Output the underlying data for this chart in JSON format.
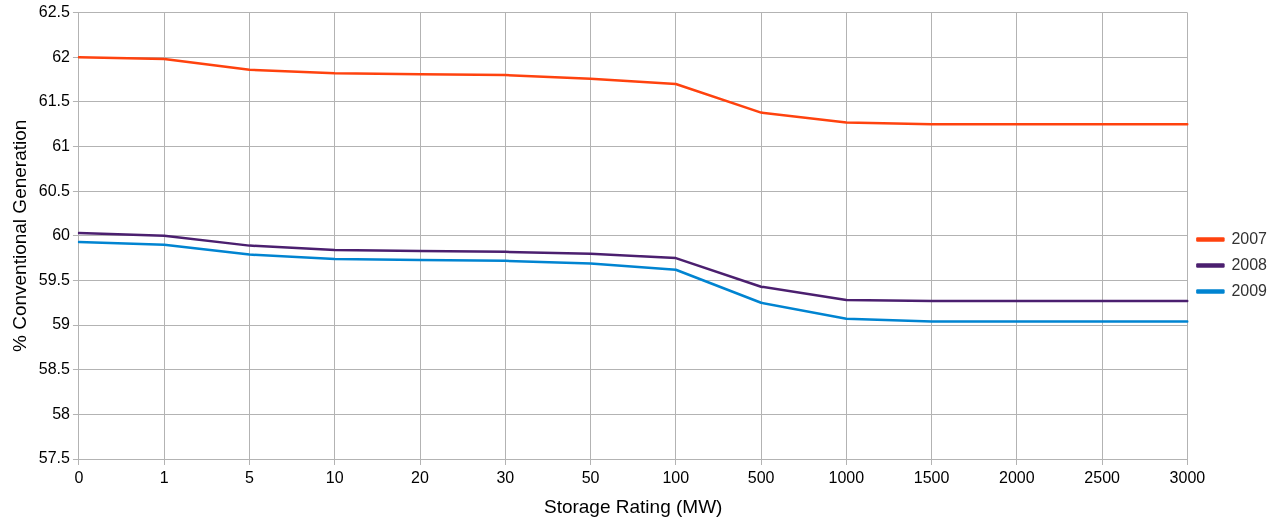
{
  "chart_data": {
    "type": "line",
    "xlabel": "Storage Rating (MW)",
    "ylabel": "% Conventional Generation",
    "categories": [
      "0",
      "1",
      "5",
      "10",
      "20",
      "30",
      "50",
      "100",
      "500",
      "1000",
      "1500",
      "2000",
      "2500",
      "3000"
    ],
    "series": [
      {
        "name": "2007",
        "color": "#ff420e",
        "values": [
          62.0,
          61.98,
          61.86,
          61.82,
          61.81,
          61.8,
          61.76,
          61.7,
          61.38,
          61.27,
          61.25,
          61.25,
          61.25,
          61.25
        ]
      },
      {
        "name": "2008",
        "color": "#4b1f6f",
        "values": [
          60.03,
          60.0,
          59.89,
          59.84,
          59.83,
          59.82,
          59.8,
          59.75,
          59.43,
          59.28,
          59.27,
          59.27,
          59.27,
          59.27
        ]
      },
      {
        "name": "2009",
        "color": "#0084d1",
        "values": [
          59.93,
          59.9,
          59.79,
          59.74,
          59.73,
          59.72,
          59.69,
          59.62,
          59.25,
          59.07,
          59.04,
          59.04,
          59.04,
          59.04
        ]
      }
    ],
    "ylim": [
      57.5,
      62.5
    ],
    "yticks": [
      57.5,
      58,
      58.5,
      59,
      59.5,
      60,
      60.5,
      61,
      61.5,
      62,
      62.5
    ],
    "grid": true,
    "legend": "right",
    "marker": "none",
    "line_style": "solid"
  }
}
